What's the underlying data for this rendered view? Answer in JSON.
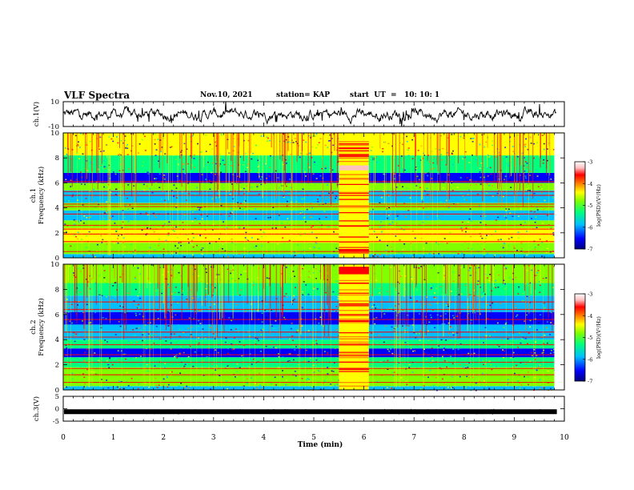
{
  "header": {
    "title": "VLF Spectra",
    "date": "Nov.10, 2021",
    "station": "station= KAP",
    "start_ut": "start  UT  =   10: 10: 1"
  },
  "chart_data": [
    {
      "type": "line",
      "panel": "ch1-waveform",
      "ylabel": "ch.1(V)",
      "ylim": [
        -10,
        10
      ],
      "yticks": [
        "10",
        "-10"
      ],
      "xlim": [
        0,
        10
      ],
      "color": "#000000"
    },
    {
      "type": "heatmap",
      "panel": "ch1-spectrogram",
      "ylabel": "ch.1 Frequency (kHz)",
      "ylim": [
        0,
        10
      ],
      "yticks": [
        "0",
        "2",
        "4",
        "6",
        "8",
        "10"
      ],
      "xlim": [
        0,
        10
      ],
      "data_extent_min": 9.8,
      "burst_interval_min": [
        5.5,
        6.1
      ],
      "colorbar": {
        "label": "log(PSD)(V²/Hz)",
        "range": [
          -7,
          -3
        ],
        "ticks": [
          "-3",
          "-4",
          "-5",
          "-6",
          "-7"
        ],
        "colors": [
          "#00007f",
          "#0000ff",
          "#00bfff",
          "#00ff7f",
          "#7fff00",
          "#ffff00",
          "#ff7f00",
          "#ff0000",
          "#ffc0c0",
          "#ffffff"
        ]
      }
    },
    {
      "type": "heatmap",
      "panel": "ch2-spectrogram",
      "ylabel": "ch.2 Frequency (kHz)",
      "ylim": [
        0,
        10
      ],
      "yticks": [
        "0",
        "2",
        "4",
        "6",
        "8",
        "10"
      ],
      "xlim": [
        0,
        10
      ],
      "data_extent_min": 9.8,
      "burst_interval_min": [
        5.5,
        6.1
      ],
      "colorbar": {
        "label": "log(PSD)(V²/Hz)",
        "range": [
          -7,
          -3
        ],
        "ticks": [
          "-3",
          "-4",
          "-5",
          "-6",
          "-7"
        ],
        "colors": [
          "#00007f",
          "#0000ff",
          "#00bfff",
          "#00ff7f",
          "#7fff00",
          "#ffff00",
          "#ff7f00",
          "#ff0000",
          "#ffc0c0",
          "#ffffff"
        ]
      }
    },
    {
      "type": "line",
      "panel": "ch3-waveform",
      "ylabel": "ch.3(V)",
      "ylim": [
        -5,
        5
      ],
      "yticks": [
        "5",
        "0",
        "-5"
      ],
      "approx_level_v": -1.2,
      "xlim": [
        0,
        10
      ],
      "color": "#000000"
    }
  ],
  "x_axis": {
    "label": "Time  (min)",
    "ticks": [
      "0",
      "1",
      "2",
      "3",
      "4",
      "5",
      "6",
      "7",
      "8",
      "9",
      "10"
    ]
  }
}
